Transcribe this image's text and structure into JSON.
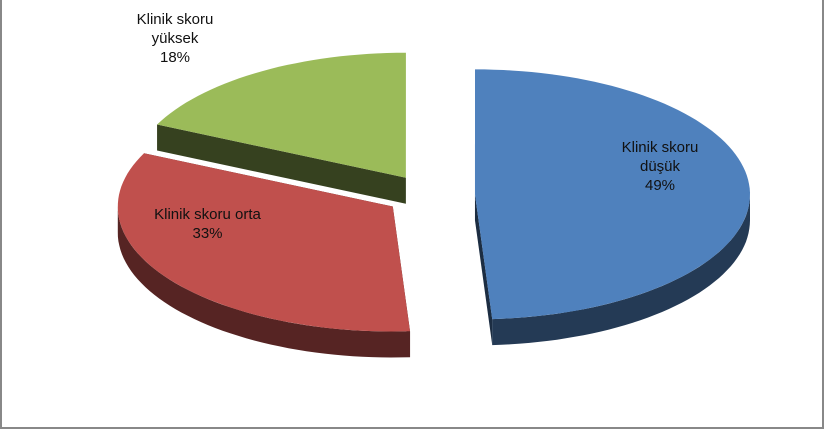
{
  "chart_data": {
    "type": "pie3d",
    "categories": [
      "Klinik skoru düşük",
      "Klinik skoru orta",
      "Klinik skoru yüksek"
    ],
    "values": [
      49,
      33,
      18
    ],
    "value_labels": [
      "49%",
      "33%",
      "18%"
    ],
    "colors": [
      "#4f81bd",
      "#c0504d",
      "#9bbb59"
    ]
  }
}
